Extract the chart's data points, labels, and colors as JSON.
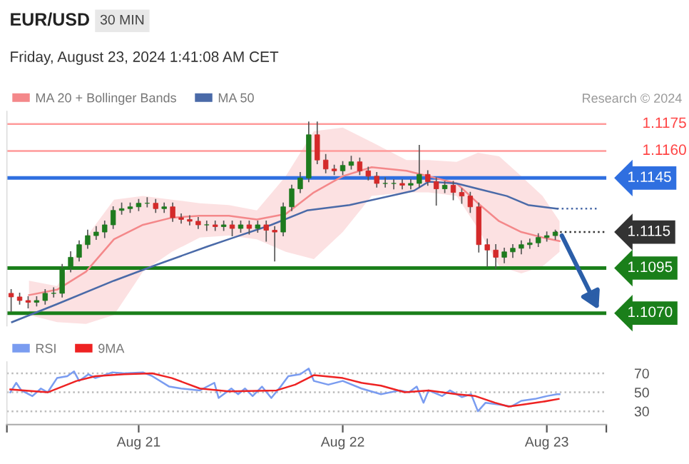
{
  "chart_data": [
    {
      "type": "candlestick",
      "title": "EUR/USD",
      "subtitle": "Friday, August 23, 2024 1:41:08 AM CET",
      "annotations": [
        "30 MIN",
        "Research © 2024"
      ],
      "x": [
        "2024-08-20T09:00",
        "2024-08-20T10:00",
        "2024-08-20T11:00",
        "2024-08-20T12:00",
        "2024-08-20T13:00",
        "2024-08-20T14:00",
        "2024-08-20T15:00",
        "2024-08-20T16:00",
        "2024-08-20T17:00",
        "2024-08-20T18:00",
        "2024-08-20T19:00",
        "2024-08-20T20:00",
        "2024-08-20T21:00",
        "2024-08-20T22:00",
        "2024-08-20T23:00",
        "2024-08-21T00:00",
        "2024-08-21T01:00",
        "2024-08-21T02:00",
        "2024-08-21T03:00",
        "2024-08-21T04:00",
        "2024-08-21T05:00",
        "2024-08-21T06:00",
        "2024-08-21T07:00",
        "2024-08-21T08:00",
        "2024-08-21T09:00",
        "2024-08-21T10:00",
        "2024-08-21T11:00",
        "2024-08-21T12:00",
        "2024-08-21T13:00",
        "2024-08-21T14:00",
        "2024-08-21T15:00",
        "2024-08-21T16:00",
        "2024-08-21T17:00",
        "2024-08-21T18:00",
        "2024-08-21T19:00",
        "2024-08-21T20:00",
        "2024-08-21T21:00",
        "2024-08-21T22:00",
        "2024-08-21T23:00",
        "2024-08-22T00:00",
        "2024-08-22T01:00",
        "2024-08-22T02:00",
        "2024-08-22T03:00",
        "2024-08-22T04:00",
        "2024-08-22T05:00",
        "2024-08-22T06:00",
        "2024-08-22T07:00",
        "2024-08-22T08:00",
        "2024-08-22T09:00",
        "2024-08-22T10:00",
        "2024-08-22T11:00",
        "2024-08-22T12:00",
        "2024-08-22T13:00",
        "2024-08-22T14:00",
        "2024-08-22T15:00",
        "2024-08-22T16:00",
        "2024-08-22T17:00",
        "2024-08-22T18:00",
        "2024-08-22T19:00",
        "2024-08-22T20:00",
        "2024-08-22T21:00",
        "2024-08-22T22:00",
        "2024-08-22T23:00",
        "2024-08-23T00:00",
        "2024-08-23T01:00"
      ],
      "ohlc": [
        [
          1.1081,
          1.1083,
          1.1071,
          1.1079
        ],
        [
          1.1079,
          1.1081,
          1.1075,
          1.1077
        ],
        [
          1.1077,
          1.1079,
          1.1073,
          1.1076
        ],
        [
          1.1076,
          1.1079,
          1.1074,
          1.1077
        ],
        [
          1.1077,
          1.1083,
          1.1075,
          1.1081
        ],
        [
          1.1081,
          1.1084,
          1.1079,
          1.1081
        ],
        [
          1.1081,
          1.1097,
          1.1079,
          1.1095
        ],
        [
          1.1095,
          1.1104,
          1.1093,
          1.1101
        ],
        [
          1.1101,
          1.111,
          1.1099,
          1.1108
        ],
        [
          1.1108,
          1.1116,
          1.1106,
          1.1113
        ],
        [
          1.1113,
          1.1118,
          1.1111,
          1.1115
        ],
        [
          1.1115,
          1.1121,
          1.1112,
          1.1119
        ],
        [
          1.1119,
          1.1129,
          1.1117,
          1.1127
        ],
        [
          1.1127,
          1.1131,
          1.1125,
          1.1128
        ],
        [
          1.1128,
          1.1131,
          1.1126,
          1.1129
        ],
        [
          1.1129,
          1.1133,
          1.1127,
          1.1131
        ],
        [
          1.1131,
          1.1134,
          1.1129,
          1.1131
        ],
        [
          1.1131,
          1.1133,
          1.1126,
          1.1128
        ],
        [
          1.1128,
          1.1131,
          1.1126,
          1.1129
        ],
        [
          1.1129,
          1.1131,
          1.1121,
          1.1123
        ],
        [
          1.1123,
          1.1125,
          1.112,
          1.1122
        ],
        [
          1.1122,
          1.1124,
          1.1119,
          1.1121
        ],
        [
          1.1121,
          1.1123,
          1.1117,
          1.1119
        ],
        [
          1.1119,
          1.1121,
          1.1116,
          1.1119
        ],
        [
          1.1119,
          1.1121,
          1.1116,
          1.1118
        ],
        [
          1.1118,
          1.1121,
          1.1116,
          1.1119
        ],
        [
          1.1119,
          1.1121,
          1.1113,
          1.1117
        ],
        [
          1.1117,
          1.1121,
          1.1115,
          1.1119
        ],
        [
          1.1119,
          1.1121,
          1.1114,
          1.1117
        ],
        [
          1.1117,
          1.1121,
          1.1115,
          1.1119
        ],
        [
          1.1119,
          1.1121,
          1.111,
          1.1116
        ],
        [
          1.1116,
          1.1118,
          1.1099,
          1.1115
        ],
        [
          1.1115,
          1.1131,
          1.1113,
          1.1129
        ],
        [
          1.1129,
          1.1141,
          1.1127,
          1.1139
        ],
        [
          1.1139,
          1.1148,
          1.1137,
          1.1145
        ],
        [
          1.1145,
          1.1176,
          1.1143,
          1.1169
        ],
        [
          1.1169,
          1.1176,
          1.1153,
          1.1155
        ],
        [
          1.1155,
          1.1158,
          1.1148,
          1.115
        ],
        [
          1.115,
          1.1152,
          1.1147,
          1.1149
        ],
        [
          1.1149,
          1.1154,
          1.1147,
          1.1152
        ],
        [
          1.1152,
          1.1157,
          1.115,
          1.1154
        ],
        [
          1.1154,
          1.1156,
          1.1147,
          1.1149
        ],
        [
          1.1149,
          1.1151,
          1.1144,
          1.1146
        ],
        [
          1.1146,
          1.1148,
          1.114,
          1.1142
        ],
        [
          1.1142,
          1.1145,
          1.114,
          1.1142
        ],
        [
          1.1142,
          1.1144,
          1.1139,
          1.1142
        ],
        [
          1.1142,
          1.1144,
          1.1139,
          1.1141
        ],
        [
          1.1141,
          1.1144,
          1.1139,
          1.1142
        ],
        [
          1.1142,
          1.1163,
          1.114,
          1.1147
        ],
        [
          1.1147,
          1.1149,
          1.1141,
          1.1143
        ],
        [
          1.1143,
          1.1145,
          1.113,
          1.1139
        ],
        [
          1.1139,
          1.1143,
          1.1137,
          1.1141
        ],
        [
          1.1141,
          1.1143,
          1.1133,
          1.1137
        ],
        [
          1.1137,
          1.1139,
          1.1131,
          1.1135
        ],
        [
          1.1135,
          1.1137,
          1.1126,
          1.1129
        ],
        [
          1.1129,
          1.1131,
          1.1104,
          1.1108
        ],
        [
          1.1108,
          1.1111,
          1.1096,
          1.1105
        ],
        [
          1.1105,
          1.1108,
          1.1095,
          1.1101
        ],
        [
          1.1101,
          1.1106,
          1.1098,
          1.1104
        ],
        [
          1.1104,
          1.1108,
          1.1101,
          1.1106
        ],
        [
          1.1106,
          1.111,
          1.1103,
          1.1108
        ],
        [
          1.1108,
          1.1111,
          1.1106,
          1.1109
        ],
        [
          1.1109,
          1.1114,
          1.1107,
          1.1112
        ],
        [
          1.1112,
          1.1115,
          1.111,
          1.1113
        ],
        [
          1.1113,
          1.1116,
          1.1111,
          1.1115
        ]
      ],
      "series": [
        {
          "name": "MA 20 + Bollinger Bands",
          "type": "line",
          "color": "#f4888a",
          "x": [
            "2024-08-20T11:06",
            "2024-08-20T14:24",
            "2024-08-20T17:48",
            "2024-08-20T21:06",
            "2024-08-21T00:30",
            "2024-08-21T03:54",
            "2024-08-21T07:12",
            "2024-08-21T10:36",
            "2024-08-21T13:54",
            "2024-08-21T17:18",
            "2024-08-21T20:36",
            "2024-08-22T00:00",
            "2024-08-22T03:24",
            "2024-08-22T07:30",
            "2024-08-22T10:06",
            "2024-08-22T13:24",
            "2024-08-22T15:54",
            "2024-08-22T18:24",
            "2024-08-22T21:00",
            "2024-08-22T23:30",
            "2024-08-23T01:30"
          ],
          "values": [
            1.108,
            1.1083,
            1.1093,
            1.1111,
            1.1119,
            1.1123,
            1.1124,
            1.1124,
            1.1122,
            1.1125,
            1.1137,
            1.1146,
            1.1151,
            1.1149,
            1.1146,
            1.1142,
            1.1131,
            1.1121,
            1.1115,
            1.1112,
            1.111
          ],
          "upper": [
            1.1088,
            1.1085,
            1.1112,
            1.1133,
            1.1135,
            1.1133,
            1.1131,
            1.113,
            1.1127,
            1.1146,
            1.1171,
            1.1173,
            1.1165,
            1.1155,
            1.1155,
            1.1154,
            1.1159,
            1.1157,
            1.1146,
            1.1135,
            1.1121
          ],
          "lower": [
            1.1069,
            1.1065,
            1.1064,
            1.1069,
            1.1093,
            1.1104,
            1.1112,
            1.1113,
            1.1111,
            1.1104,
            1.11,
            1.1115,
            1.1135,
            1.1137,
            1.1137,
            1.1135,
            1.1117,
            1.1096,
            1.1092,
            1.1096,
            1.1104
          ]
        },
        {
          "name": "MA 50",
          "type": "line",
          "color": "#4a6aa8",
          "x": [
            "2024-08-20T09:06",
            "2024-08-20T14:24",
            "2024-08-20T21:06",
            "2024-08-21T02:12",
            "2024-08-21T08:06",
            "2024-08-21T10:36",
            "2024-08-21T15:36",
            "2024-08-21T19:48",
            "2024-08-22T00:48",
            "2024-08-22T08:24",
            "2024-08-22T10:06",
            "2024-08-22T13:24",
            "2024-08-22T15:54",
            "2024-08-22T19:18",
            "2024-08-22T21:48",
            "2024-08-23T01:12"
          ],
          "values": [
            1.1065,
            1.1075,
            1.1088,
            1.1097,
            1.1107,
            1.1111,
            1.1119,
            1.1127,
            1.113,
            1.1138,
            1.1143,
            1.1142,
            1.1139,
            1.1135,
            1.113,
            1.1128
          ]
        },
        {
          "type": "line",
          "color": "#4a6aa8",
          "line_style": "dotted",
          "x": [
            "2024-08-23T01:12",
            "2024-08-23T06:00"
          ],
          "values": [
            1.1128,
            1.1128
          ]
        }
      ],
      "ref_lines": [
        {
          "axis": "y",
          "value": 1.1175,
          "label": "1.1175",
          "color": "#ff9a9a"
        },
        {
          "axis": "y",
          "value": 1.116,
          "label": "1.1160",
          "color": "#ff9a9a"
        },
        {
          "axis": "y",
          "value": 1.1145,
          "label": "1.1145",
          "color": "#2f6fe0"
        },
        {
          "axis": "y",
          "value": 1.1115,
          "label": "1.1115",
          "color": "#333333",
          "line_style": "dotted"
        },
        {
          "axis": "y",
          "value": 1.1095,
          "label": "1.1095",
          "color": "#1a7f1a"
        },
        {
          "axis": "y",
          "value": 1.107,
          "label": "1.1070",
          "color": "#1a7f1a"
        }
      ],
      "xlim": [
        "2024-08-20T08:30",
        "2024-08-23T07:00"
      ],
      "ylim": [
        1.1063,
        1.1182
      ],
      "tick_labels": false,
      "legend": "top left"
    },
    {
      "type": "line",
      "series": [
        {
          "name": "RSI",
          "color": "#7a9cf0",
          "x": [
            "2024-08-20T08:54",
            "2024-08-20T09:36",
            "2024-08-20T10:12",
            "2024-08-20T11:30",
            "2024-08-20T12:30",
            "2024-08-20T13:18",
            "2024-08-20T14:24",
            "2024-08-20T15:36",
            "2024-08-20T16:24",
            "2024-08-20T17:00",
            "2024-08-20T18:06",
            "2024-08-20T18:54",
            "2024-08-20T20:54",
            "2024-08-20T22:18",
            "2024-08-21T00:30",
            "2024-08-21T01:36",
            "2024-08-21T03:36",
            "2024-08-21T05:00",
            "2024-08-21T07:12",
            "2024-08-21T08:54",
            "2024-08-21T09:24",
            "2024-08-21T10:54",
            "2024-08-21T11:42",
            "2024-08-21T12:30",
            "2024-08-21T13:24",
            "2024-08-21T14:30",
            "2024-08-21T15:36",
            "2024-08-21T16:42",
            "2024-08-21T17:36",
            "2024-08-21T19:00",
            "2024-08-21T20:00",
            "2024-08-21T20:36",
            "2024-08-21T22:18",
            "2024-08-22T00:00",
            "2024-08-22T02:12",
            "2024-08-22T04:30",
            "2024-08-22T06:42",
            "2024-08-22T07:48",
            "2024-08-22T08:42",
            "2024-08-22T09:30",
            "2024-08-22T10:06",
            "2024-08-22T11:42",
            "2024-08-22T12:36",
            "2024-08-22T14:00",
            "2024-08-22T15:06",
            "2024-08-22T15:54",
            "2024-08-22T16:48",
            "2024-08-22T18:24",
            "2024-08-22T19:48",
            "2024-08-22T21:00",
            "2024-08-22T22:36",
            "2024-08-23T00:00",
            "2024-08-23T01:12",
            "2024-08-23T01:30"
          ],
          "values": [
            50,
            60,
            52,
            46,
            54,
            50,
            65,
            67,
            72,
            62,
            69,
            65,
            71,
            70,
            71,
            67,
            56,
            54,
            52,
            60,
            44,
            54,
            48,
            54,
            46,
            56,
            44,
            56,
            67,
            69,
            75,
            62,
            58,
            62,
            54,
            48,
            52,
            50,
            56,
            39,
            52,
            46,
            52,
            45,
            48,
            30,
            39,
            37,
            35,
            41,
            43,
            46,
            48,
            48
          ]
        },
        {
          "name": "9MA",
          "color": "#ee2222",
          "x": [
            "2024-08-20T08:54",
            "2024-08-20T13:18",
            "2024-08-20T16:42",
            "2024-08-20T18:54",
            "2024-08-20T22:18",
            "2024-08-21T01:36",
            "2024-08-21T03:54",
            "2024-08-21T07:12",
            "2024-08-21T10:36",
            "2024-08-21T16:12",
            "2024-08-21T18:24",
            "2024-08-21T20:36",
            "2024-08-22T00:00",
            "2024-08-22T02:12",
            "2024-08-22T04:30",
            "2024-08-22T07:18",
            "2024-08-22T10:06",
            "2024-08-22T13:24",
            "2024-08-22T15:36",
            "2024-08-22T17:54",
            "2024-08-22T19:30",
            "2024-08-22T21:12",
            "2024-08-22T23:30",
            "2024-08-23T01:24"
          ],
          "values": [
            53,
            50,
            62,
            67,
            69,
            70,
            65,
            54,
            51,
            52,
            58,
            68,
            65,
            60,
            57,
            50,
            52,
            48,
            46,
            39,
            35,
            37,
            40,
            43
          ]
        }
      ],
      "xlim": [
        "2024-08-20T08:30",
        "2024-08-23T07:00"
      ],
      "ylim": [
        16,
        82
      ],
      "yticks": [
        30,
        50,
        70
      ],
      "xticks": [
        {
          "value": "2024-08-20T08:30",
          "label": null
        },
        {
          "value": "2024-08-21",
          "label": "Aug 21"
        },
        {
          "value": "2024-08-22",
          "label": "Aug 22"
        },
        {
          "value": "2024-08-23",
          "label": "Aug 23"
        },
        {
          "value": "2024-08-23T07:00",
          "label": null
        }
      ],
      "grid": "y",
      "legend": "top left"
    }
  ]
}
